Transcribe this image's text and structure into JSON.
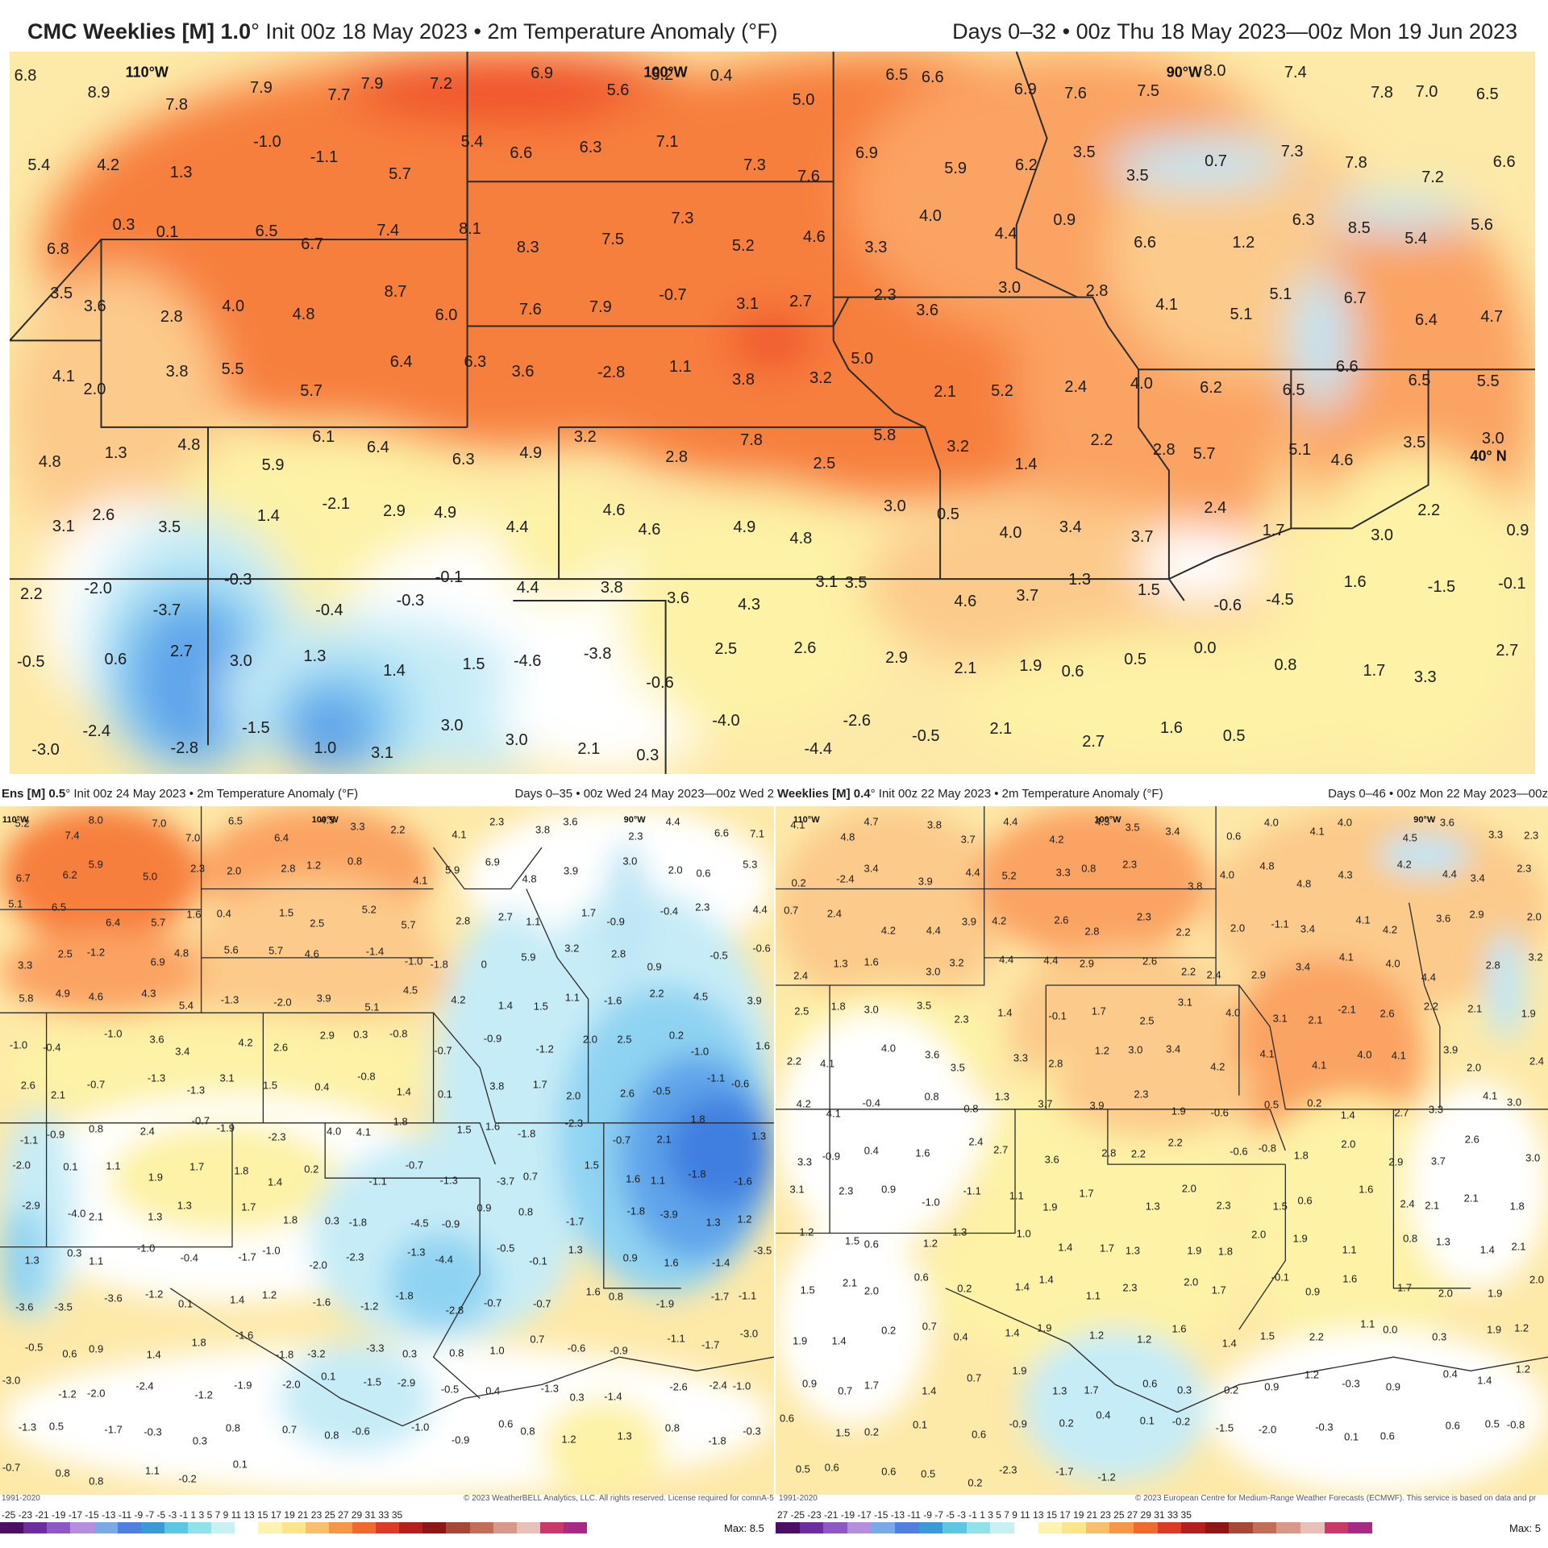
{
  "colors": {
    "red": "#f0522a",
    "orange": "#f77f3e",
    "lightorange": "#fba362",
    "tan": "#fcca8a",
    "yellow": "#fdf2a6",
    "white": "#ffffff",
    "lightblue": "#c6ecf7",
    "blue": "#8fd3f2",
    "darkblue": "#5ea4ea",
    "deepblue": "#3f7fe0",
    "lake": "#bfe6f5"
  },
  "top": {
    "title_bold": "CMC Weeklies [M] 1.0",
    "title_rest": "° Init 00z 18 May 2023 • 2m Temperature Anomaly (°F)",
    "right": "Days 0–32 • 00z Thu 18 May 2023—00z Mon 19 Jun 2023",
    "lon_labels": [
      "110°W",
      "100°W",
      "90°W"
    ],
    "lat_labels": [
      "40° N"
    ],
    "values": [
      "6.8",
      "8.9",
      "7.8",
      "7.9",
      "7.7",
      "7.9",
      "7.2",
      "6.9",
      "5.6",
      "5.2",
      "0.4",
      "5.0",
      "6.5",
      "6.6",
      "6.9",
      "7.6",
      "7.5",
      "8.0",
      "7.4",
      "7.8",
      "7.0",
      "6.5",
      "5.4",
      "4.2",
      "1.3",
      "-1.0",
      "-1.1",
      "5.7",
      "5.4",
      "6.6",
      "6.3",
      "7.1",
      "7.3",
      "7.6",
      "6.9",
      "5.9",
      "6.2",
      "3.5",
      "3.5",
      "0.7",
      "7.3",
      "7.8",
      "7.2",
      "6.6",
      "6.8",
      "0.3",
      "0.1",
      "6.5",
      "6.7",
      "7.4",
      "8.1",
      "8.3",
      "7.5",
      "7.3",
      "5.2",
      "4.6",
      "3.3",
      "4.0",
      "4.4",
      "0.9",
      "6.6",
      "1.2",
      "6.3",
      "8.5",
      "5.4",
      "5.6",
      "3.5",
      "3.6",
      "2.8",
      "4.0",
      "4.8",
      "8.7",
      "6.0",
      "7.6",
      "7.9",
      "-0.7",
      "3.1",
      "2.7",
      "2.3",
      "3.6",
      "3.0",
      "2.8",
      "4.1",
      "5.1",
      "5.1",
      "6.7",
      "6.4",
      "4.7",
      "4.1",
      "2.0",
      "3.8",
      "5.5",
      "5.7",
      "6.4",
      "6.3",
      "3.6",
      "-2.8",
      "1.1",
      "3.8",
      "3.2",
      "5.0",
      "2.1",
      "5.2",
      "2.4",
      "4.0",
      "6.2",
      "6.5",
      "6.6",
      "6.5",
      "5.5",
      "4.8",
      "1.3",
      "4.8",
      "5.9",
      "6.1",
      "6.4",
      "6.3",
      "4.9",
      "3.2",
      "2.8",
      "7.8",
      "2.5",
      "5.8",
      "3.2",
      "1.4",
      "2.2",
      "2.8",
      "5.7",
      "5.1",
      "4.6",
      "3.5",
      "3.0",
      "3.1",
      "2.6",
      "3.5",
      "1.4",
      "-2.1",
      "2.9",
      "4.9",
      "4.4",
      "4.6",
      "4.6",
      "4.9",
      "4.8",
      "3.0",
      "0.5",
      "4.0",
      "3.4",
      "3.7",
      "2.4",
      "1.7",
      "3.0",
      "2.2",
      "0.9",
      "2.2",
      "-2.0",
      "-3.7",
      "-0.3",
      "-0.4",
      "-0.3",
      "-0.1",
      "4.4",
      "3.8",
      "3.6",
      "4.3",
      "3.1",
      "3.5",
      "4.6",
      "3.7",
      "1.3",
      "1.5",
      "-0.6",
      "-4.5",
      "1.6",
      "-1.5",
      "-0.1",
      "-0.5",
      "0.6",
      "2.7",
      "3.0",
      "1.3",
      "1.4",
      "1.5",
      "-4.6",
      "-3.8",
      "-0.6",
      "2.5",
      "2.6",
      "2.9",
      "2.1",
      "1.9",
      "0.6",
      "0.5",
      "0.0",
      "0.8",
      "1.7",
      "3.3",
      "2.7",
      "-3.0",
      "-2.4",
      "-2.8",
      "-1.5",
      "1.0",
      "3.1",
      "3.0",
      "3.0",
      "2.1",
      "0.3",
      "-4.0",
      "-4.4",
      "-2.6",
      "-0.5",
      "2.1",
      "2.7",
      "1.6",
      "0.5"
    ]
  },
  "bottom_left": {
    "title_bold": "Ens [M] 0.5",
    "title_rest": "° Init 00z 24 May 2023 • 2m Temperature Anomaly (°F)",
    "right": "Days 0–35 • 00z Wed 24 May 2023—00z Wed 2",
    "lon_labels": [
      "110°W",
      "100°W",
      "90°W"
    ],
    "footer_left": "1991-2020",
    "footer": "© 2023 WeatherBELL Analytics, LLC. All rights reserved. License required for comnA-5 1991-2020",
    "scale": "-25 -23 -21 -19 -17 -15 -13 -11 -9 -7 -5 -3 -1 1 3 5 7 9 11 13 15 17 19 21 23 25 27 29 31 33 35",
    "max_label": "Max: 8.5",
    "values": [
      "5.2",
      "7.4",
      "8.0",
      "7.0",
      "7.0",
      "6.5",
      "6.4",
      "4.5",
      "3.3",
      "2.2",
      "4.1",
      "2.3",
      "3.8",
      "3.6",
      "2.3",
      "4.4",
      "6.6",
      "7.1",
      "6.7",
      "6.2",
      "5.9",
      "5.0",
      "2.3",
      "2.0",
      "2.8",
      "1.2",
      "0.8",
      "4.1",
      "5.9",
      "6.9",
      "4.8",
      "3.9",
      "3.0",
      "2.0",
      "0.6",
      "5.3",
      "5.1",
      "6.5",
      "6.4",
      "5.7",
      "1.6",
      "0.4",
      "1.5",
      "2.5",
      "5.2",
      "5.7",
      "2.8",
      "2.7",
      "1.1",
      "1.7",
      "-0.9",
      "-0.4",
      "2.3",
      "4.4",
      "3.3",
      "2.5",
      "-1.2",
      "6.9",
      "4.8",
      "5.6",
      "5.7",
      "4.6",
      "-1.4",
      "-1.0",
      "-1.8",
      "0",
      "5.9",
      "3.2",
      "2.8",
      "0.9",
      "-0.5",
      "-0.6",
      "5.8",
      "4.9",
      "4.6",
      "4.3",
      "5.4",
      "-1.3",
      "-2.0",
      "3.9",
      "5.1",
      "4.5",
      "4.2",
      "1.4",
      "1.5",
      "1.1",
      "-1.6",
      "2.2",
      "4.5",
      "3.9",
      "-1.0",
      "-0.4",
      "-1.0",
      "3.6",
      "3.4",
      "4.2",
      "2.6",
      "2.9",
      "0.3",
      "-0.8",
      "-0.7",
      "-0.9",
      "-1.2",
      "2.0",
      "2.5",
      "0.2",
      "-1.0",
      "1.6",
      "2.6",
      "2.1",
      "-0.7",
      "-1.3",
      "-1.3",
      "3.1",
      "1.5",
      "0.4",
      "-0.8",
      "1.4",
      "0.1",
      "3.8",
      "1.7",
      "2.0",
      "2.6",
      "-0.5",
      "-1.1",
      "-0.6",
      "-1.1",
      "-0.9",
      "0.8",
      "2.4",
      "-0.7",
      "-1.9",
      "-2.3",
      "4.0",
      "4.1",
      "1.8",
      "1.5",
      "1.6",
      "-1.8",
      "-2.3",
      "-0.7",
      "2.1",
      "1.8",
      "1.3",
      "-2.0",
      "0.1",
      "1.1",
      "1.9",
      "1.7",
      "1.8",
      "1.4",
      "0.2",
      "-1.1",
      "-0.7",
      "-1.3",
      "-3.7",
      "0.7",
      "1.5",
      "1.6",
      "1.1",
      "-1.8",
      "-1.6",
      "-2.9",
      "-4.0",
      "2.1",
      "1.3",
      "1.3",
      "1.7",
      "1.8",
      "0.3",
      "-1.8",
      "-4.5",
      "-0.9",
      "0.9",
      "0.8",
      "-1.7",
      "-1.8",
      "-3.9",
      "1.3",
      "1.2",
      "1.3",
      "0.3",
      "1.1",
      "-1.0",
      "-0.4",
      "-1.7",
      "-1.0",
      "-2.0",
      "-2.3",
      "-1.3",
      "-4.4",
      "-0.5",
      "-0.1",
      "1.3",
      "0.9",
      "1.6",
      "-1.4",
      "-3.5",
      "-3.6",
      "-3.5",
      "-3.6",
      "-1.2",
      "0.1",
      "1.4",
      "1.2",
      "-1.6",
      "-1.2",
      "-1.8",
      "-2.8",
      "-0.7",
      "-0.7",
      "1.6",
      "0.8",
      "-1.9",
      "-1.7",
      "-1.1",
      "-0.5",
      "0.6",
      "0.9",
      "1.4",
      "1.8",
      "-1.6",
      "-1.8",
      "-3.2",
      "-3.3",
      "0.3",
      "0.8",
      "1.0",
      "0.7",
      "-0.6",
      "-0.9",
      "-1.1",
      "-1.7",
      "-3.0",
      "-3.0",
      "-1.2",
      "-2.0",
      "-2.4",
      "-1.2",
      "-1.9",
      "-2.0",
      "0.1",
      "-1.5",
      "-2.9",
      "-0.5",
      "0.4",
      "-1.3",
      "0.3",
      "-1.4",
      "-2.6",
      "-2.4",
      "-1.0",
      "-1.3",
      "0.5",
      "-1.7",
      "-0.3",
      "0.3",
      "0.8",
      "0.7",
      "0.8",
      "-0.6",
      "-1.0",
      "-0.9",
      "0.6",
      "0.8",
      "1.2",
      "1.3",
      "0.8",
      "-1.8",
      "-0.3",
      "-0.7",
      "0.8",
      "0.8",
      "1.1",
      "-0.2",
      "0.1"
    ]
  },
  "bottom_right": {
    "title_bold": "Weeklies [M] 0.4",
    "title_rest": "° Init 00z 22 May 2023 • 2m Temperature Anomaly (°F)",
    "right": "Days 0–46 • 00z Mon 22 May 2023—00z",
    "lon_labels": [
      "110°W",
      "100°W",
      "90°W"
    ],
    "footer_left": "1991-2020",
    "footer": "© 2023 European Centre for Medium-Range Weather Forecasts (ECMWF). This service is based on data and pr",
    "scale": "27 -25 -23 -21 -19 -17 -15 -13 -11 -9 -7 -5 -3 -1 1 3 5 7 9 11 13 15 17 19 21 23 25 27 29 31 33 35",
    "max_label": "Max: 5",
    "values": [
      "4.1",
      "4.8",
      "4.7",
      "3.8",
      "3.7",
      "4.4",
      "4.2",
      "4.3",
      "3.5",
      "3.4",
      "0.6",
      "4.0",
      "4.1",
      "4.0",
      "4.5",
      "3.6",
      "3.3",
      "2.3",
      "0.2",
      "-2.4",
      "3.4",
      "3.9",
      "4.4",
      "5.2",
      "3.3",
      "0.8",
      "2.3",
      "3.8",
      "4.0",
      "4.8",
      "4.8",
      "4.3",
      "4.2",
      "4.4",
      "3.4",
      "2.3",
      "0.7",
      "2.4",
      "4.2",
      "4.4",
      "3.9",
      "4.2",
      "2.6",
      "2.8",
      "2.3",
      "2.2",
      "2.0",
      "-1.1",
      "3.4",
      "4.1",
      "4.2",
      "3.6",
      "2.9",
      "2.0",
      "2.4",
      "1.3",
      "1.6",
      "3.0",
      "3.2",
      "4.4",
      "4.4",
      "2.9",
      "2.6",
      "2.2",
      "2.4",
      "2.9",
      "3.4",
      "4.1",
      "4.0",
      "4.4",
      "2.8",
      "3.2",
      "2.5",
      "1.8",
      "3.0",
      "3.5",
      "2.3",
      "1.4",
      "-0.1",
      "1.7",
      "2.5",
      "3.1",
      "4.0",
      "3.1",
      "2.1",
      "-2.1",
      "2.6",
      "2.2",
      "2.1",
      "1.9",
      "2.2",
      "4.1",
      "4.0",
      "3.6",
      "3.5",
      "3.3",
      "2.8",
      "1.2",
      "3.0",
      "3.4",
      "4.2",
      "4.1",
      "4.1",
      "4.0",
      "4.1",
      "3.9",
      "2.0",
      "2.4",
      "4.2",
      "4.1",
      "-0.4",
      "0.8",
      "0.8",
      "1.3",
      "3.7",
      "3.9",
      "2.3",
      "1.9",
      "-0.6",
      "0.5",
      "0.2",
      "1.4",
      "2.7",
      "3.3",
      "4.1",
      "3.0",
      "3.3",
      "-0.9",
      "0.4",
      "1.6",
      "2.4",
      "2.7",
      "3.6",
      "2.8",
      "2.2",
      "2.2",
      "-0.6",
      "-0.8",
      "1.8",
      "2.0",
      "2.9",
      "3.7",
      "2.6",
      "3.0",
      "3.1",
      "2.3",
      "0.9",
      "-1.0",
      "-1.1",
      "1.1",
      "1.9",
      "1.7",
      "1.3",
      "2.0",
      "2.3",
      "1.5",
      "0.6",
      "1.6",
      "2.4",
      "2.1",
      "2.1",
      "1.8",
      "1.2",
      "1.5",
      "0.6",
      "1.2",
      "1.3",
      "1.0",
      "1.4",
      "1.7",
      "1.3",
      "1.9",
      "1.8",
      "2.0",
      "1.9",
      "1.1",
      "0.8",
      "1.3",
      "1.4",
      "2.1",
      "1.5",
      "2.1",
      "2.0",
      "0.6",
      "0.2",
      "1.4",
      "1.4",
      "1.1",
      "2.3",
      "2.0",
      "1.7",
      "-0.1",
      "0.9",
      "1.6",
      "1.7",
      "2.0",
      "1.9",
      "2.0",
      "1.9",
      "1.4",
      "0.2",
      "0.7",
      "0.4",
      "1.4",
      "1.9",
      "1.2",
      "1.2",
      "1.6",
      "1.4",
      "1.5",
      "2.2",
      "1.1",
      "0.0",
      "0.3",
      "1.9",
      "1.2",
      "0.9",
      "0.7",
      "1.7",
      "1.4",
      "0.7",
      "1.9",
      "1.3",
      "1.7",
      "0.6",
      "0.3",
      "0.2",
      "0.9",
      "1.2",
      "-0.3",
      "0.9",
      "0.4",
      "1.4",
      "1.2",
      "0.6",
      "1.5",
      "0.2",
      "0.1",
      "0.6",
      "-0.9",
      "0.2",
      "0.4",
      "0.1",
      "-0.2",
      "-1.5",
      "-2.0",
      "-0.3",
      "0.1",
      "0.6",
      "0.6",
      "0.5",
      "-0.8",
      "0.5",
      "0.6",
      "0.6",
      "0.5",
      "0.2",
      "-2.3",
      "-1.7",
      "-1.2"
    ]
  }
}
